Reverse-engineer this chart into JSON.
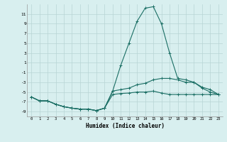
{
  "xlabel": "Humidex (Indice chaleur)",
  "x_values": [
    0,
    1,
    2,
    3,
    4,
    5,
    6,
    7,
    8,
    9,
    10,
    11,
    12,
    13,
    14,
    15,
    16,
    17,
    18,
    19,
    20,
    21,
    22,
    23
  ],
  "line1_y": [
    -6.0,
    -6.8,
    -6.8,
    -7.5,
    -8.0,
    -8.3,
    -8.5,
    -8.5,
    -8.8,
    -8.3,
    -5.5,
    -5.3,
    -5.2,
    -5.0,
    -5.0,
    -4.8,
    -5.2,
    -5.5,
    -5.5,
    -5.5,
    -5.5,
    -5.5,
    -5.5,
    -5.5
  ],
  "line2_y": [
    -6.0,
    -6.8,
    -6.8,
    -7.5,
    -8.0,
    -8.3,
    -8.5,
    -8.5,
    -8.8,
    -8.3,
    -4.8,
    0.5,
    5.0,
    9.5,
    12.2,
    12.5,
    9.0,
    3.0,
    -2.2,
    -2.5,
    -3.0,
    -4.2,
    -5.0,
    -5.5
  ],
  "line3_y": [
    -6.0,
    -6.8,
    -6.8,
    -7.5,
    -8.0,
    -8.3,
    -8.5,
    -8.5,
    -8.8,
    -8.3,
    -4.8,
    -4.5,
    -4.2,
    -3.5,
    -3.2,
    -2.5,
    -2.2,
    -2.2,
    -2.5,
    -3.0,
    -3.0,
    -4.0,
    -4.5,
    -5.5
  ],
  "ylim": [
    -10,
    13
  ],
  "yticks": [
    -9,
    -7,
    -5,
    -3,
    -1,
    1,
    3,
    5,
    7,
    9,
    11
  ],
  "line_color": "#1a6e64",
  "bg_color": "#d8efef",
  "grid_color": "#b8d4d4",
  "marker": "+"
}
